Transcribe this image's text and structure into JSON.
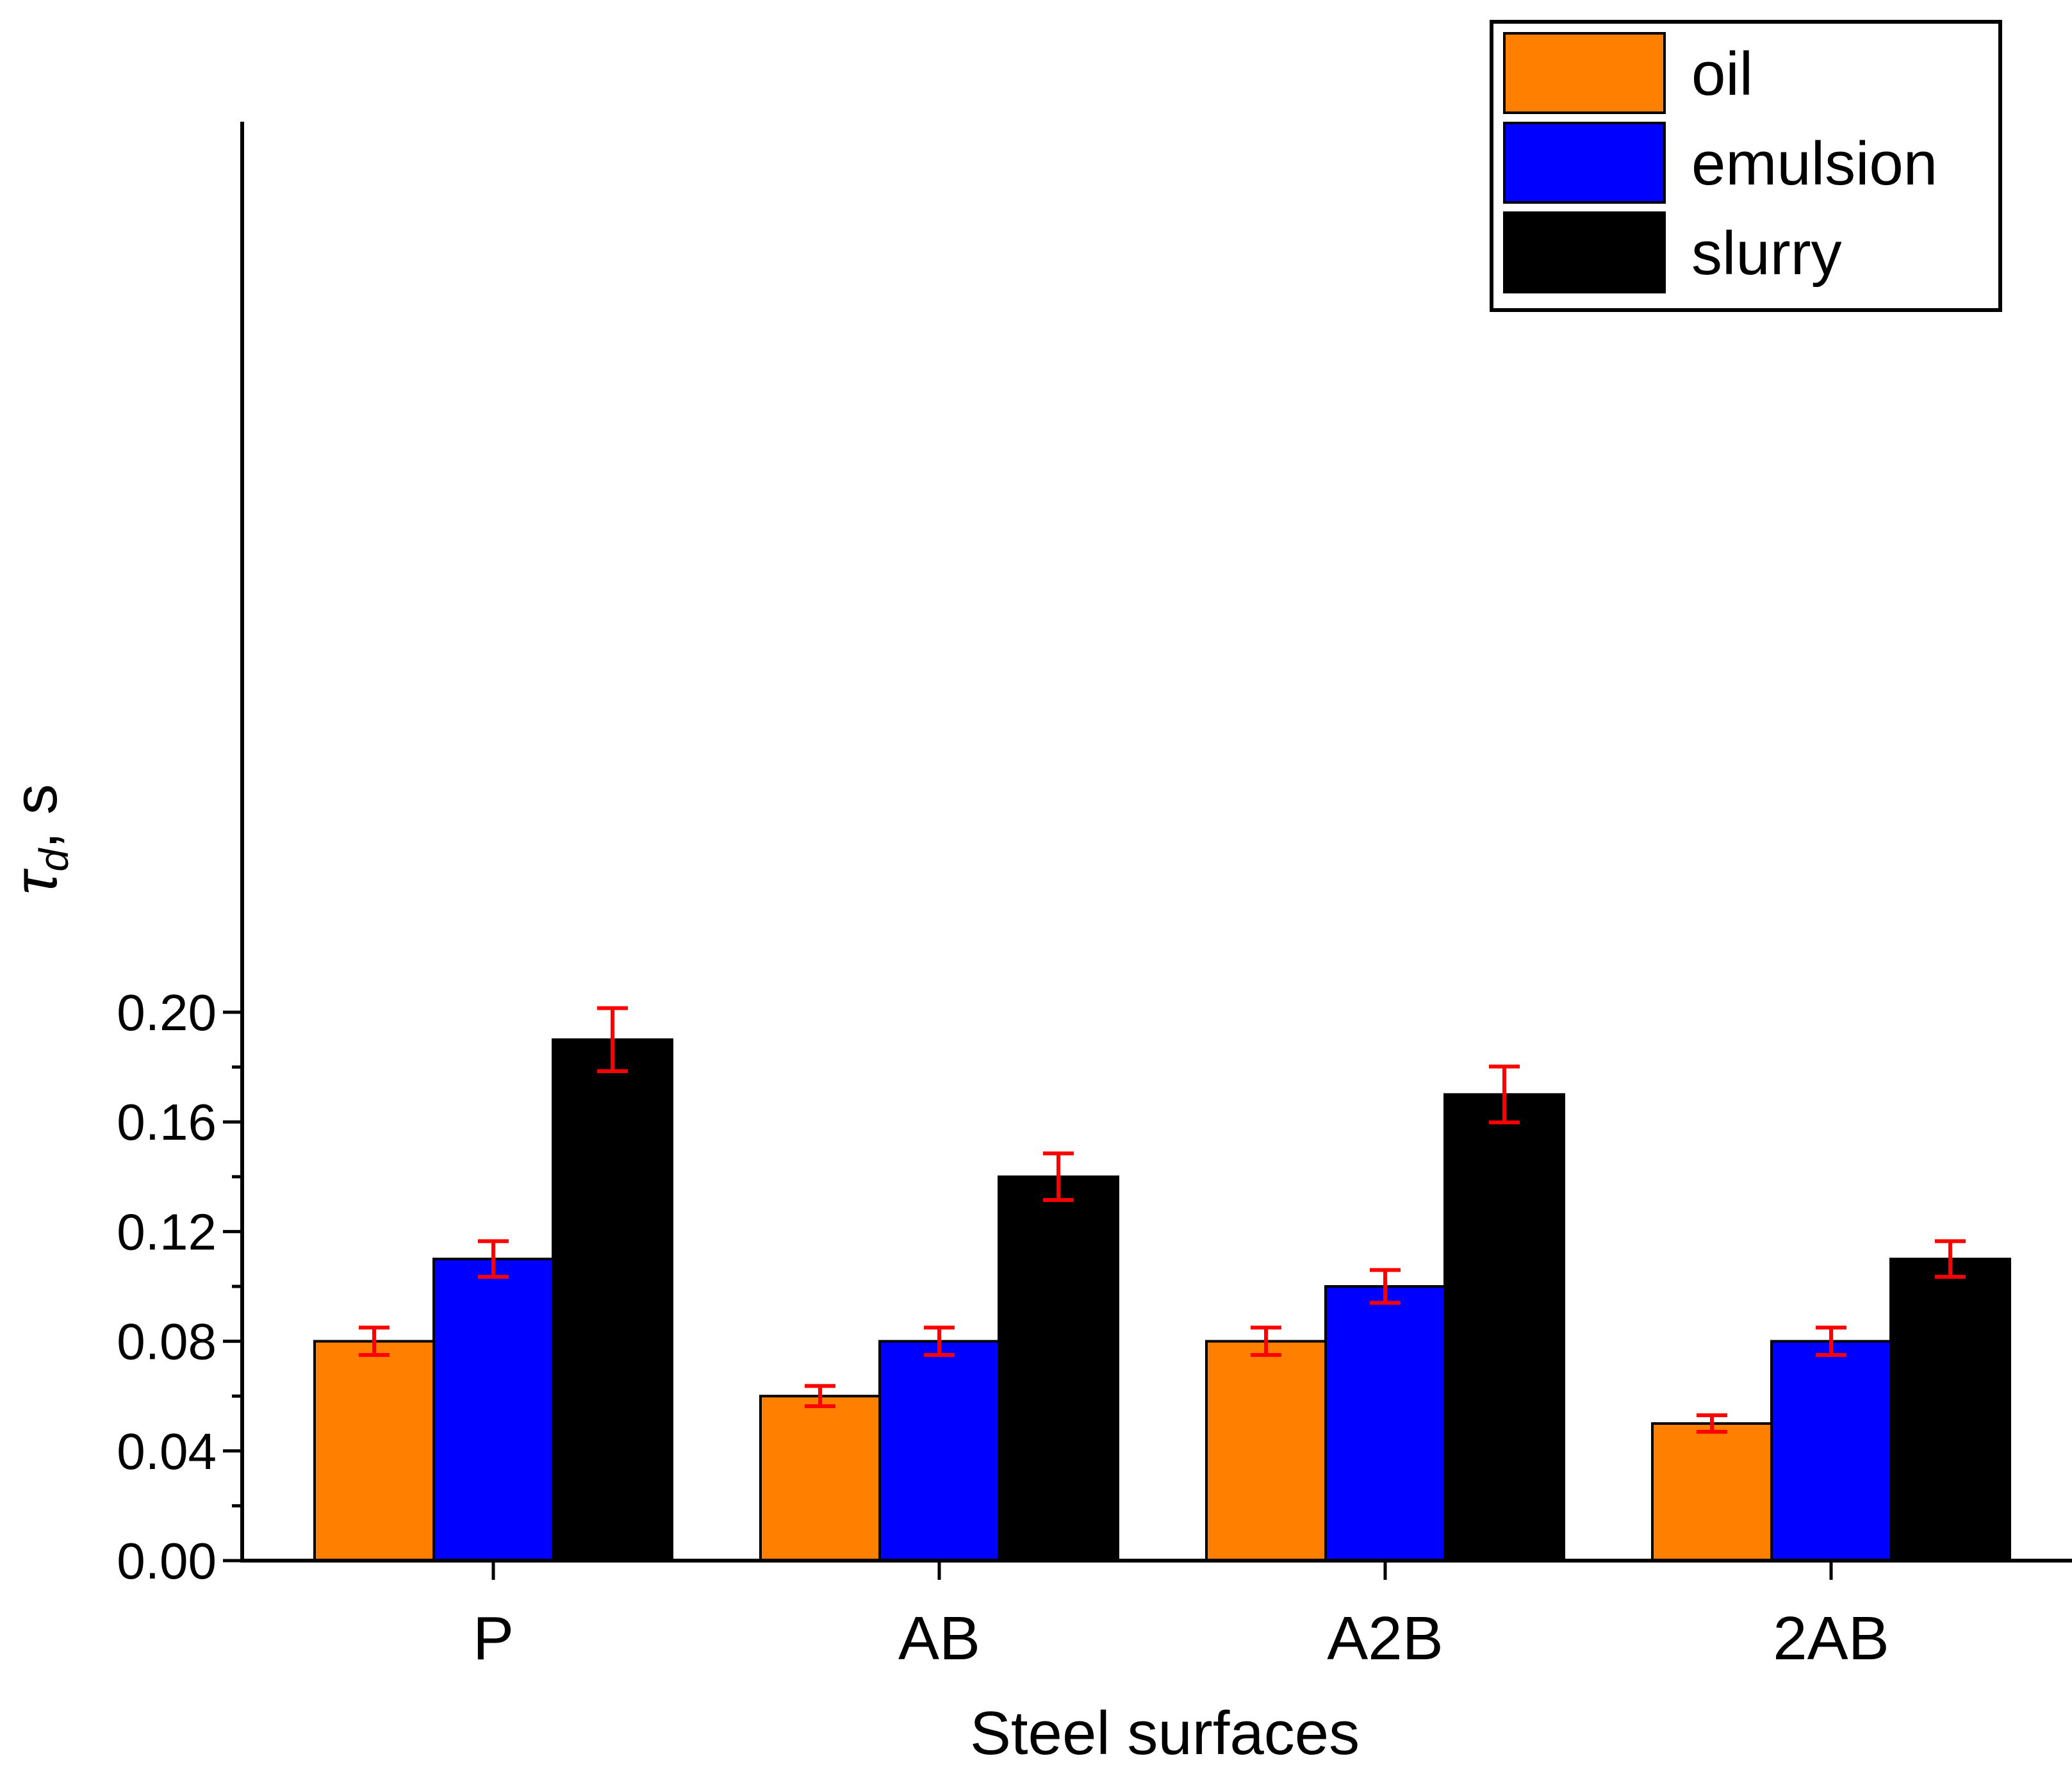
{
  "chart_data": {
    "type": "bar",
    "xlabel": "Steel surfaces",
    "ylabel": {
      "symbol": "τ",
      "subscript": "d",
      "unit": ", s"
    },
    "categories": [
      "P",
      "AB",
      "A2B",
      "2AB"
    ],
    "ylim": [
      0,
      0.21
    ],
    "yticks": [
      0,
      0.04,
      0.08,
      0.12,
      0.16,
      0.2
    ],
    "ytick_labels": [
      "0.00",
      "0.04",
      "0.08",
      "0.12",
      "0.16",
      "0.20"
    ],
    "series": [
      {
        "name": "oil",
        "color": "#FF8000",
        "values": [
          0.08,
          0.06,
          0.08,
          0.05
        ],
        "errors": [
          0.005,
          0.0037,
          0.005,
          0.003
        ]
      },
      {
        "name": "emulsion",
        "color": "#0000FF",
        "values": [
          0.11,
          0.08,
          0.1,
          0.08
        ],
        "errors": [
          0.0065,
          0.005,
          0.006,
          0.005
        ]
      },
      {
        "name": "slurry",
        "color": "#000000",
        "values": [
          0.19,
          0.14,
          0.17,
          0.11
        ],
        "errors": [
          0.0115,
          0.0085,
          0.0102,
          0.0065
        ]
      }
    ],
    "error_bar_color": "#FF0000",
    "legend_position": "top-right",
    "grid": false
  }
}
